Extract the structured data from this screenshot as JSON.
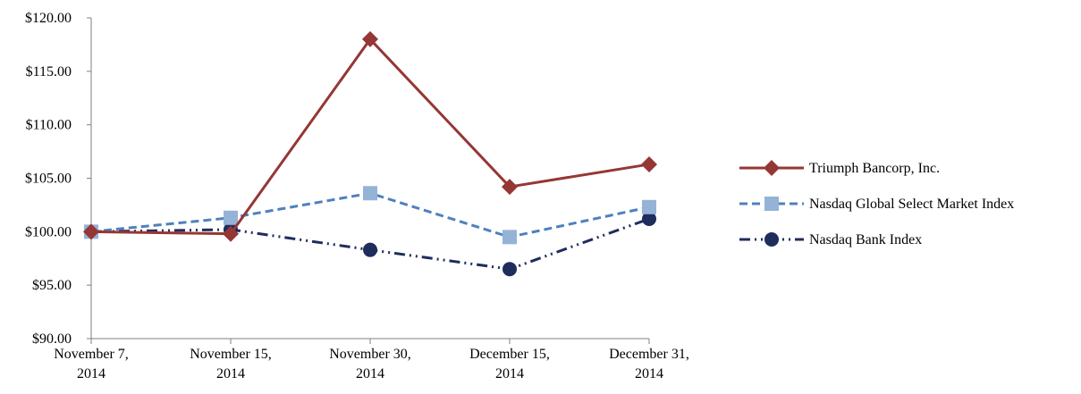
{
  "chart_data": {
    "type": "line",
    "categories": [
      [
        "November 7,",
        "2014"
      ],
      [
        "November 15,",
        "2014"
      ],
      [
        "November 30,",
        "2014"
      ],
      [
        "December 15,",
        "2014"
      ],
      [
        "December 31,",
        "2014"
      ]
    ],
    "ylim": [
      90,
      120
    ],
    "ytick_values": [
      90,
      95,
      100,
      105,
      110,
      115,
      120
    ],
    "ytick_labels": [
      "$90.00",
      "$95.00",
      "$100.00",
      "$105.00",
      "$110.00",
      "$115.00",
      "$120.00"
    ],
    "grid": false,
    "legend_position": "right",
    "series": [
      {
        "name": "Triumph Bancorp, Inc.",
        "values": [
          100.0,
          99.8,
          118.0,
          104.2,
          106.3
        ],
        "color": "#953735",
        "line_style": "solid",
        "marker": "diamond"
      },
      {
        "name": "Nasdaq Global Select Market Index",
        "values": [
          100.0,
          101.3,
          103.6,
          99.5,
          102.3
        ],
        "color": "#4f81bd",
        "marker_color": "#95b3d7",
        "line_style": "dashed",
        "marker": "square"
      },
      {
        "name": "Nasdaq Bank Index",
        "values": [
          100.0,
          100.2,
          98.3,
          96.5,
          101.2
        ],
        "color": "#1f2d5c",
        "line_style": "dash-dot-dot",
        "marker": "circle"
      }
    ]
  }
}
